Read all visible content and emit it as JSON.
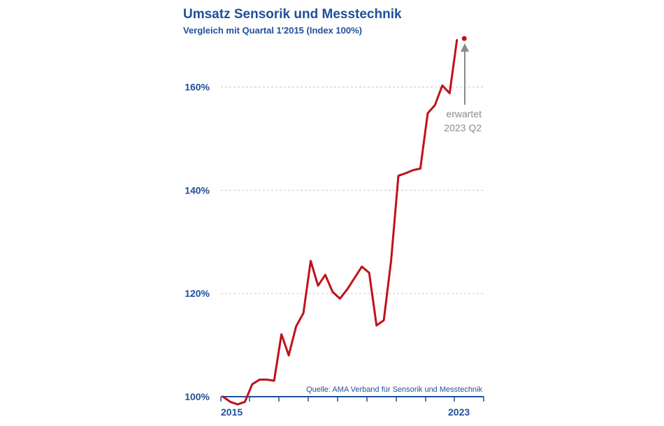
{
  "chart_data": {
    "type": "line",
    "title": "Umsatz Sensorik und Messtechnik",
    "subtitle": "Vergleich mit Quartal 1'2015 (Index 100%)",
    "xlabel": "",
    "ylabel": "",
    "x_tick_labels": [
      "2015",
      "2023"
    ],
    "y_ticks": [
      {
        "value": 100,
        "label": "100%"
      },
      {
        "value": 120,
        "label": "120%"
      },
      {
        "value": 140,
        "label": "140%"
      },
      {
        "value": 160,
        "label": "160%"
      }
    ],
    "ylim": [
      100,
      170
    ],
    "grid": true,
    "series": [
      {
        "color": "#c0111a",
        "values": [
          100.0,
          99.0,
          98.5,
          99.0,
          102.4,
          103.3,
          103.3,
          103.1,
          112.1,
          108.0,
          113.6,
          116.2,
          126.3,
          121.5,
          123.6,
          120.3,
          119.0,
          120.8,
          123.0,
          125.2,
          124.0,
          113.8,
          114.8,
          126.4,
          142.8,
          143.3,
          143.9,
          144.2,
          154.9,
          156.5,
          160.3,
          158.8,
          169.1
        ]
      }
    ],
    "forecast": {
      "value": 169.4,
      "color": "#c0111a"
    },
    "annotation": {
      "line1": "erwartet",
      "line2": "2023 Q2",
      "color": "#8a8a8a"
    },
    "source": "Quelle: AMA Verband für Sensorik und Messtechnik"
  }
}
